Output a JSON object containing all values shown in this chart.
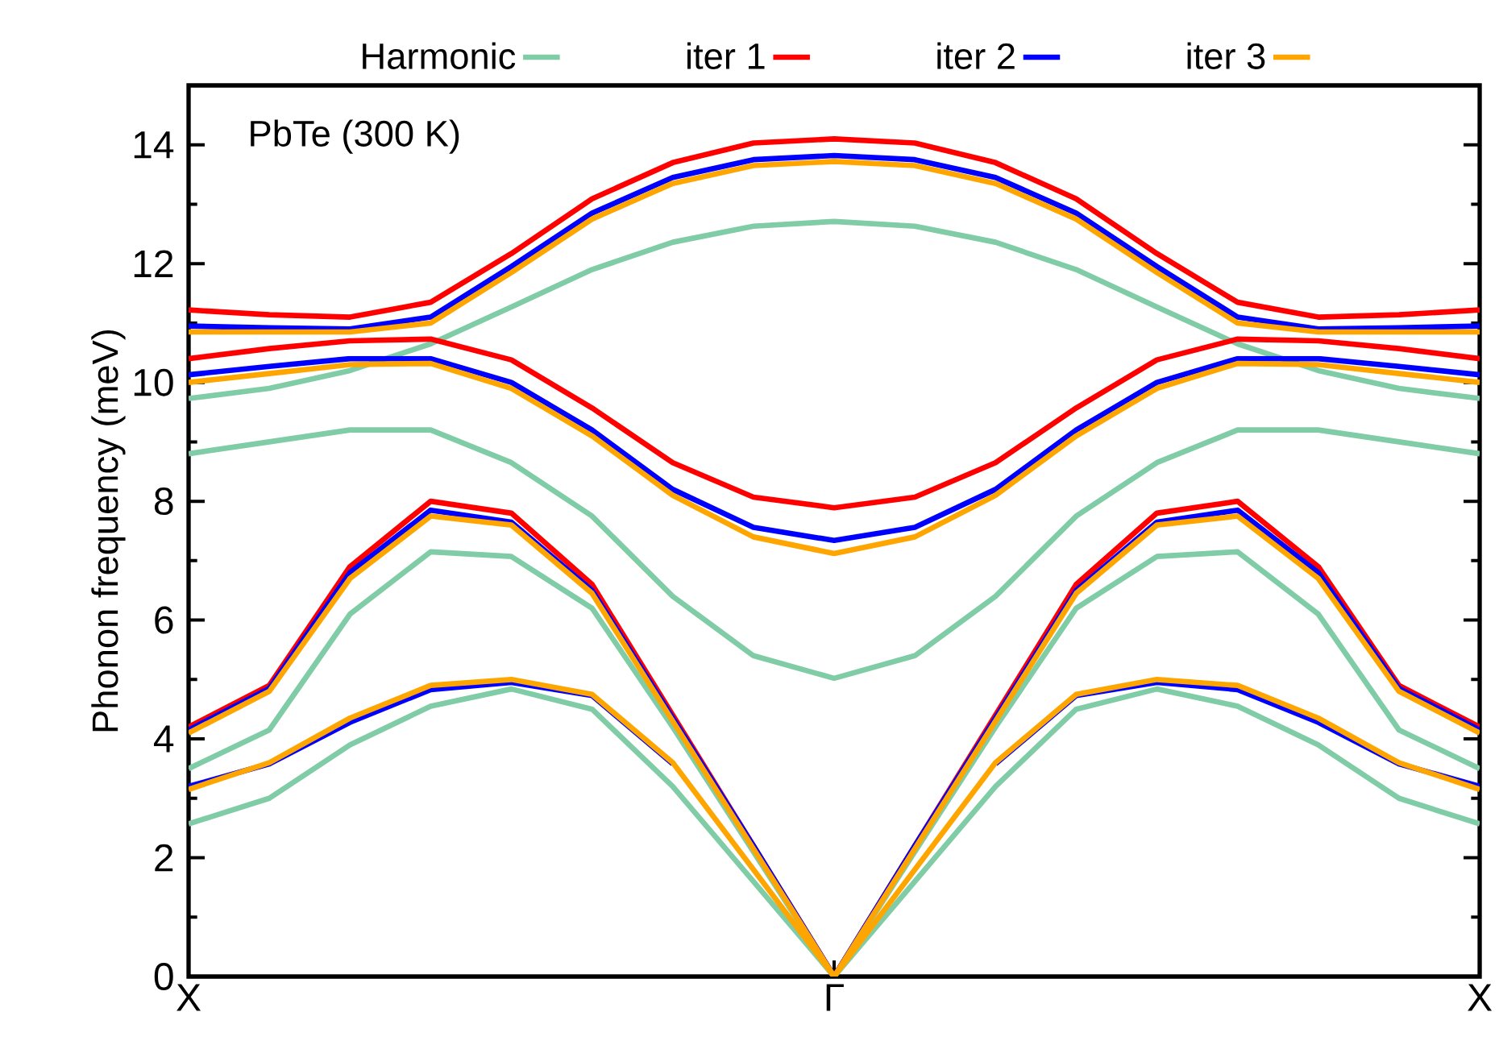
{
  "chart_data": {
    "type": "line",
    "ylabel": "Phonon frequency (meV)",
    "annotations": [
      "PbTe (300 K)"
    ],
    "categories": [
      "X",
      null,
      null,
      null,
      null,
      null,
      null,
      null,
      "Γ",
      null,
      null,
      null,
      null,
      null,
      null,
      null,
      "X"
    ],
    "ylim": [
      0,
      15
    ],
    "yticks": [
      0,
      {
        "value": 1,
        "label": null
      },
      2,
      {
        "value": 3,
        "label": null
      },
      4,
      {
        "value": 5,
        "label": null
      },
      6,
      {
        "value": 7,
        "label": null
      },
      8,
      {
        "value": 9,
        "label": null
      },
      10,
      {
        "value": 11,
        "label": null
      },
      12,
      {
        "value": 13,
        "label": null
      },
      14,
      {
        "value": 15,
        "label": null
      }
    ],
    "legend": "top",
    "series": [
      {
        "name": "Harmonic",
        "color": "#7fcca6",
        "values": [
          2.57,
          3.0,
          3.9,
          4.55,
          4.84,
          4.5,
          3.2,
          1.6,
          0,
          1.6,
          3.2,
          4.5,
          4.84,
          4.55,
          3.9,
          3.0,
          2.57
        ]
      },
      {
        "color": "#7fcca6",
        "values": [
          3.5,
          4.15,
          6.1,
          7.15,
          7.07,
          6.2,
          4.2,
          2.1,
          0,
          2.1,
          4.2,
          6.2,
          7.07,
          7.15,
          6.1,
          4.15,
          3.5
        ]
      },
      {
        "color": "#7fcca6",
        "values": [
          8.8,
          9.0,
          9.2,
          9.2,
          8.65,
          7.75,
          6.4,
          5.4,
          5.02,
          5.4,
          6.4,
          7.75,
          8.65,
          9.2,
          9.2,
          9.0,
          8.8
        ]
      },
      {
        "color": "#7fcca6",
        "values": [
          9.73,
          9.9,
          10.2,
          10.65,
          11.27,
          11.9,
          12.36,
          12.63,
          12.71,
          12.63,
          12.36,
          11.9,
          11.27,
          10.65,
          10.2,
          9.9,
          9.73
        ]
      },
      {
        "name": "iter 1",
        "color": "#ff0000",
        "values": [
          4.2,
          4.9,
          6.9,
          8.0,
          7.8,
          6.6,
          4.4,
          2.2,
          0,
          2.2,
          4.4,
          6.6,
          7.8,
          8.0,
          6.9,
          4.9,
          4.2
        ]
      },
      {
        "color": "#ff0000",
        "values": [
          10.4,
          10.57,
          10.7,
          10.73,
          10.38,
          9.57,
          8.65,
          8.07,
          7.89,
          8.07,
          8.65,
          9.57,
          10.38,
          10.73,
          10.7,
          10.57,
          10.4
        ]
      },
      {
        "color": "#ff0000",
        "values": [
          11.22,
          11.14,
          11.1,
          11.35,
          12.17,
          13.09,
          13.7,
          14.03,
          14.1,
          14.03,
          13.7,
          13.09,
          12.17,
          11.35,
          11.1,
          11.14,
          11.22
        ]
      },
      {
        "name": "iter 2",
        "color": "#0000ff",
        "values": [
          3.2,
          3.58,
          4.28,
          4.83,
          4.95,
          4.73,
          3.58,
          null,
          null,
          null,
          3.58,
          4.73,
          4.95,
          4.83,
          4.28,
          3.58,
          3.2
        ]
      },
      {
        "color": "#0000ff",
        "values": [
          4.15,
          4.85,
          6.8,
          7.85,
          7.65,
          6.5,
          4.35,
          2.2,
          0,
          2.2,
          4.35,
          6.5,
          7.65,
          7.85,
          6.8,
          4.85,
          4.15
        ]
      },
      {
        "color": "#0000ff",
        "values": [
          10.13,
          10.27,
          10.4,
          10.4,
          10.0,
          9.2,
          8.2,
          7.56,
          7.34,
          7.56,
          8.2,
          9.2,
          10.0,
          10.4,
          10.4,
          10.27,
          10.13
        ]
      },
      {
        "color": "#0000ff",
        "values": [
          10.95,
          10.92,
          10.9,
          11.1,
          11.95,
          12.85,
          13.45,
          13.75,
          13.82,
          13.75,
          13.45,
          12.85,
          11.95,
          11.1,
          10.9,
          10.92,
          10.95
        ]
      },
      {
        "name": "iter 3",
        "color": "#ffa500",
        "values": [
          3.15,
          3.6,
          4.35,
          4.9,
          5.0,
          4.75,
          3.6,
          1.8,
          0,
          1.8,
          3.6,
          4.75,
          5.0,
          4.9,
          4.35,
          3.6,
          3.15
        ]
      },
      {
        "color": "#ffa500",
        "values": [
          4.1,
          4.8,
          6.7,
          7.75,
          7.6,
          6.45,
          4.3,
          2.15,
          0,
          2.15,
          4.3,
          6.45,
          7.6,
          7.75,
          6.7,
          4.8,
          4.1
        ]
      },
      {
        "color": "#ffa500",
        "values": [
          10.0,
          10.15,
          10.3,
          10.32,
          9.9,
          9.1,
          8.1,
          7.4,
          7.12,
          7.4,
          8.1,
          9.1,
          9.9,
          10.32,
          10.3,
          10.15,
          10.0
        ]
      },
      {
        "color": "#ffa500",
        "values": [
          10.85,
          10.85,
          10.85,
          11.0,
          11.85,
          12.75,
          13.35,
          13.65,
          13.72,
          13.65,
          13.35,
          12.75,
          11.85,
          11.0,
          10.85,
          10.85,
          10.85
        ]
      }
    ]
  }
}
